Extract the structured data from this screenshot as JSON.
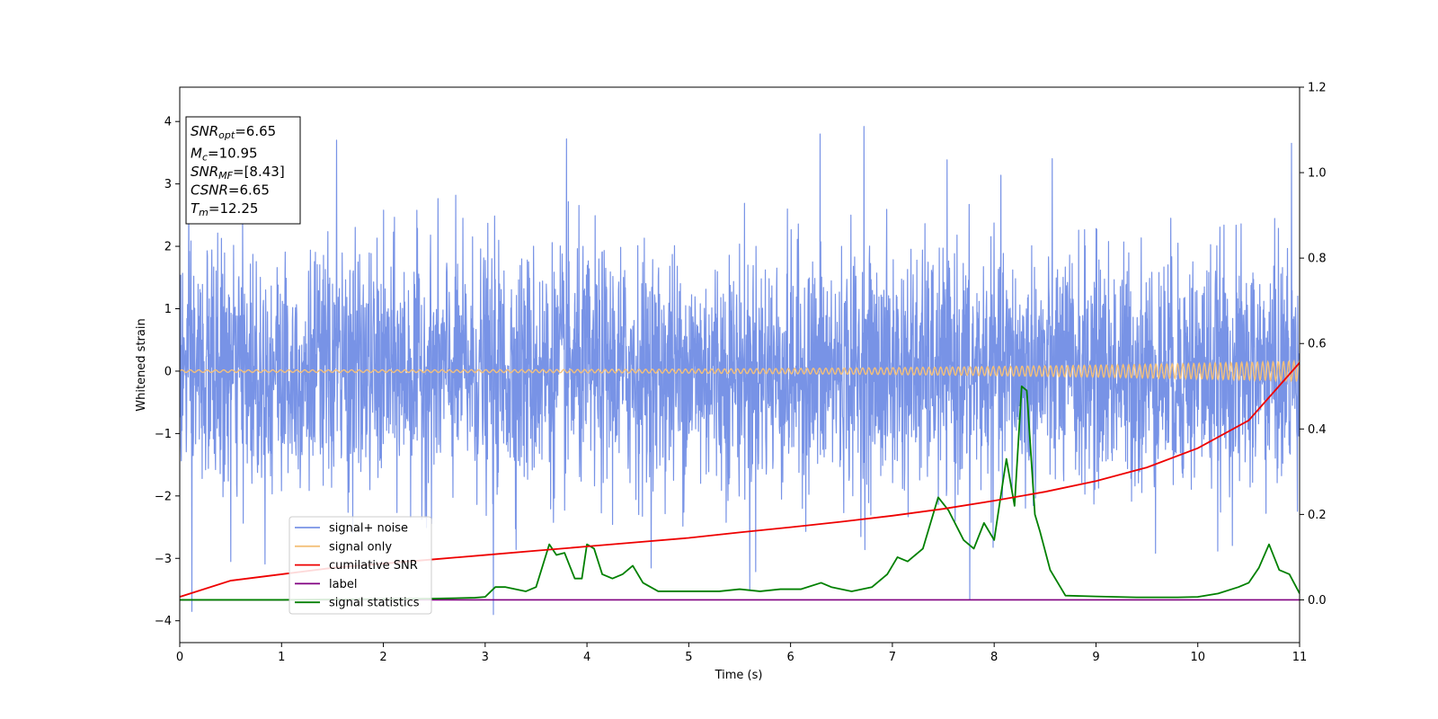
{
  "chart_data": {
    "type": "line",
    "xlabel": "Time (s)",
    "ylabel": "Whitened strain",
    "title": "",
    "xlim": [
      0,
      11
    ],
    "ylim": [
      -4.35,
      4.55
    ],
    "y2lim": [
      -0.1,
      1.2
    ],
    "grid": false,
    "legend_position": "lower-left",
    "x_ticks": [
      "0",
      "1",
      "2",
      "3",
      "4",
      "5",
      "6",
      "7",
      "8",
      "9",
      "10",
      "11"
    ],
    "y_ticks": [
      "−4",
      "−3",
      "−2",
      "−1",
      "0",
      "1",
      "2",
      "3",
      "4"
    ],
    "y2_ticks": [
      "0.0",
      "0.2",
      "0.4",
      "0.6",
      "0.8",
      "1.0",
      "1.2"
    ],
    "info_box": [
      {
        "main": "SNR",
        "sub": "opt",
        "rest": "=6.65"
      },
      {
        "main": "M",
        "sub": "c",
        "rest": "=10.95"
      },
      {
        "main": "SNR",
        "sub": "MF",
        "rest": "=[8.43]"
      },
      {
        "main": "CSNR",
        "sub": "",
        "rest": "=6.65"
      },
      {
        "main": "T",
        "sub": "m",
        "rest": "=12.25"
      }
    ],
    "series": [
      {
        "name": "signal+ noise",
        "color": "#7893e6",
        "axis": "left",
        "noise_std": 0.95,
        "noise_min": -3.9,
        "noise_max": 3.92,
        "peaks": [
          {
            "x": 0.12,
            "y": -3.85
          },
          {
            "x": 1.54,
            "y": 3.7
          },
          {
            "x": 3.08,
            "y": -3.92
          },
          {
            "x": 3.8,
            "y": 3.72
          },
          {
            "x": 6.29,
            "y": 3.8
          },
          {
            "x": 6.72,
            "y": 3.92
          },
          {
            "x": 7.76,
            "y": -3.65
          },
          {
            "x": 10.92,
            "y": 3.65
          },
          {
            "x": 0.5,
            "y": -3.05
          },
          {
            "x": 5.6,
            "y": -3.5
          }
        ]
      },
      {
        "name": "signal only",
        "color": "#f4c07a",
        "axis": "left",
        "amplitude_start": 0.02,
        "amplitude_end": 0.16
      },
      {
        "name": "cumilative SNR",
        "color": "#ee0000",
        "axis": "right",
        "x": [
          0,
          0.5,
          1,
          1.5,
          2,
          2.5,
          3,
          3.5,
          4,
          4.5,
          5,
          5.5,
          6,
          6.5,
          7,
          7.5,
          8,
          8.5,
          9,
          9.5,
          10,
          10.5,
          11
        ],
        "y": [
          0.007,
          0.045,
          0.06,
          0.075,
          0.085,
          0.095,
          0.105,
          0.115,
          0.125,
          0.135,
          0.145,
          0.158,
          0.17,
          0.183,
          0.197,
          0.213,
          0.232,
          0.253,
          0.278,
          0.31,
          0.355,
          0.42,
          0.555
        ]
      },
      {
        "name": "label",
        "color": "#800080",
        "axis": "right",
        "x": [
          0,
          11
        ],
        "y": [
          0,
          0
        ]
      },
      {
        "name": "signal statistics",
        "color": "#008000",
        "axis": "right",
        "x": [
          0,
          0.5,
          1,
          1.5,
          2,
          2.5,
          2.9,
          3.0,
          3.1,
          3.2,
          3.4,
          3.5,
          3.63,
          3.7,
          3.78,
          3.88,
          3.95,
          4.0,
          4.07,
          4.15,
          4.25,
          4.35,
          4.45,
          4.55,
          4.7,
          4.9,
          5.1,
          5.3,
          5.5,
          5.7,
          5.9,
          6.1,
          6.3,
          6.4,
          6.6,
          6.8,
          6.95,
          7.05,
          7.15,
          7.3,
          7.45,
          7.55,
          7.7,
          7.8,
          7.9,
          8.0,
          8.05,
          8.12,
          8.2,
          8.27,
          8.32,
          8.4,
          8.45,
          8.55,
          8.7,
          9.0,
          9.4,
          9.6,
          9.8,
          10.0,
          10.2,
          10.4,
          10.5,
          10.6,
          10.7,
          10.8,
          10.9,
          11.0
        ],
        "y": [
          0.0,
          0.0,
          0.0,
          0.001,
          0.002,
          0.003,
          0.005,
          0.007,
          0.03,
          0.03,
          0.02,
          0.03,
          0.13,
          0.105,
          0.11,
          0.05,
          0.05,
          0.13,
          0.12,
          0.06,
          0.05,
          0.06,
          0.08,
          0.04,
          0.02,
          0.02,
          0.02,
          0.02,
          0.025,
          0.02,
          0.025,
          0.025,
          0.04,
          0.03,
          0.02,
          0.03,
          0.06,
          0.1,
          0.09,
          0.12,
          0.24,
          0.21,
          0.14,
          0.12,
          0.18,
          0.14,
          0.22,
          0.33,
          0.22,
          0.5,
          0.49,
          0.2,
          0.16,
          0.07,
          0.01,
          0.008,
          0.006,
          0.006,
          0.006,
          0.007,
          0.015,
          0.03,
          0.04,
          0.075,
          0.13,
          0.07,
          0.06,
          0.015
        ]
      }
    ]
  }
}
